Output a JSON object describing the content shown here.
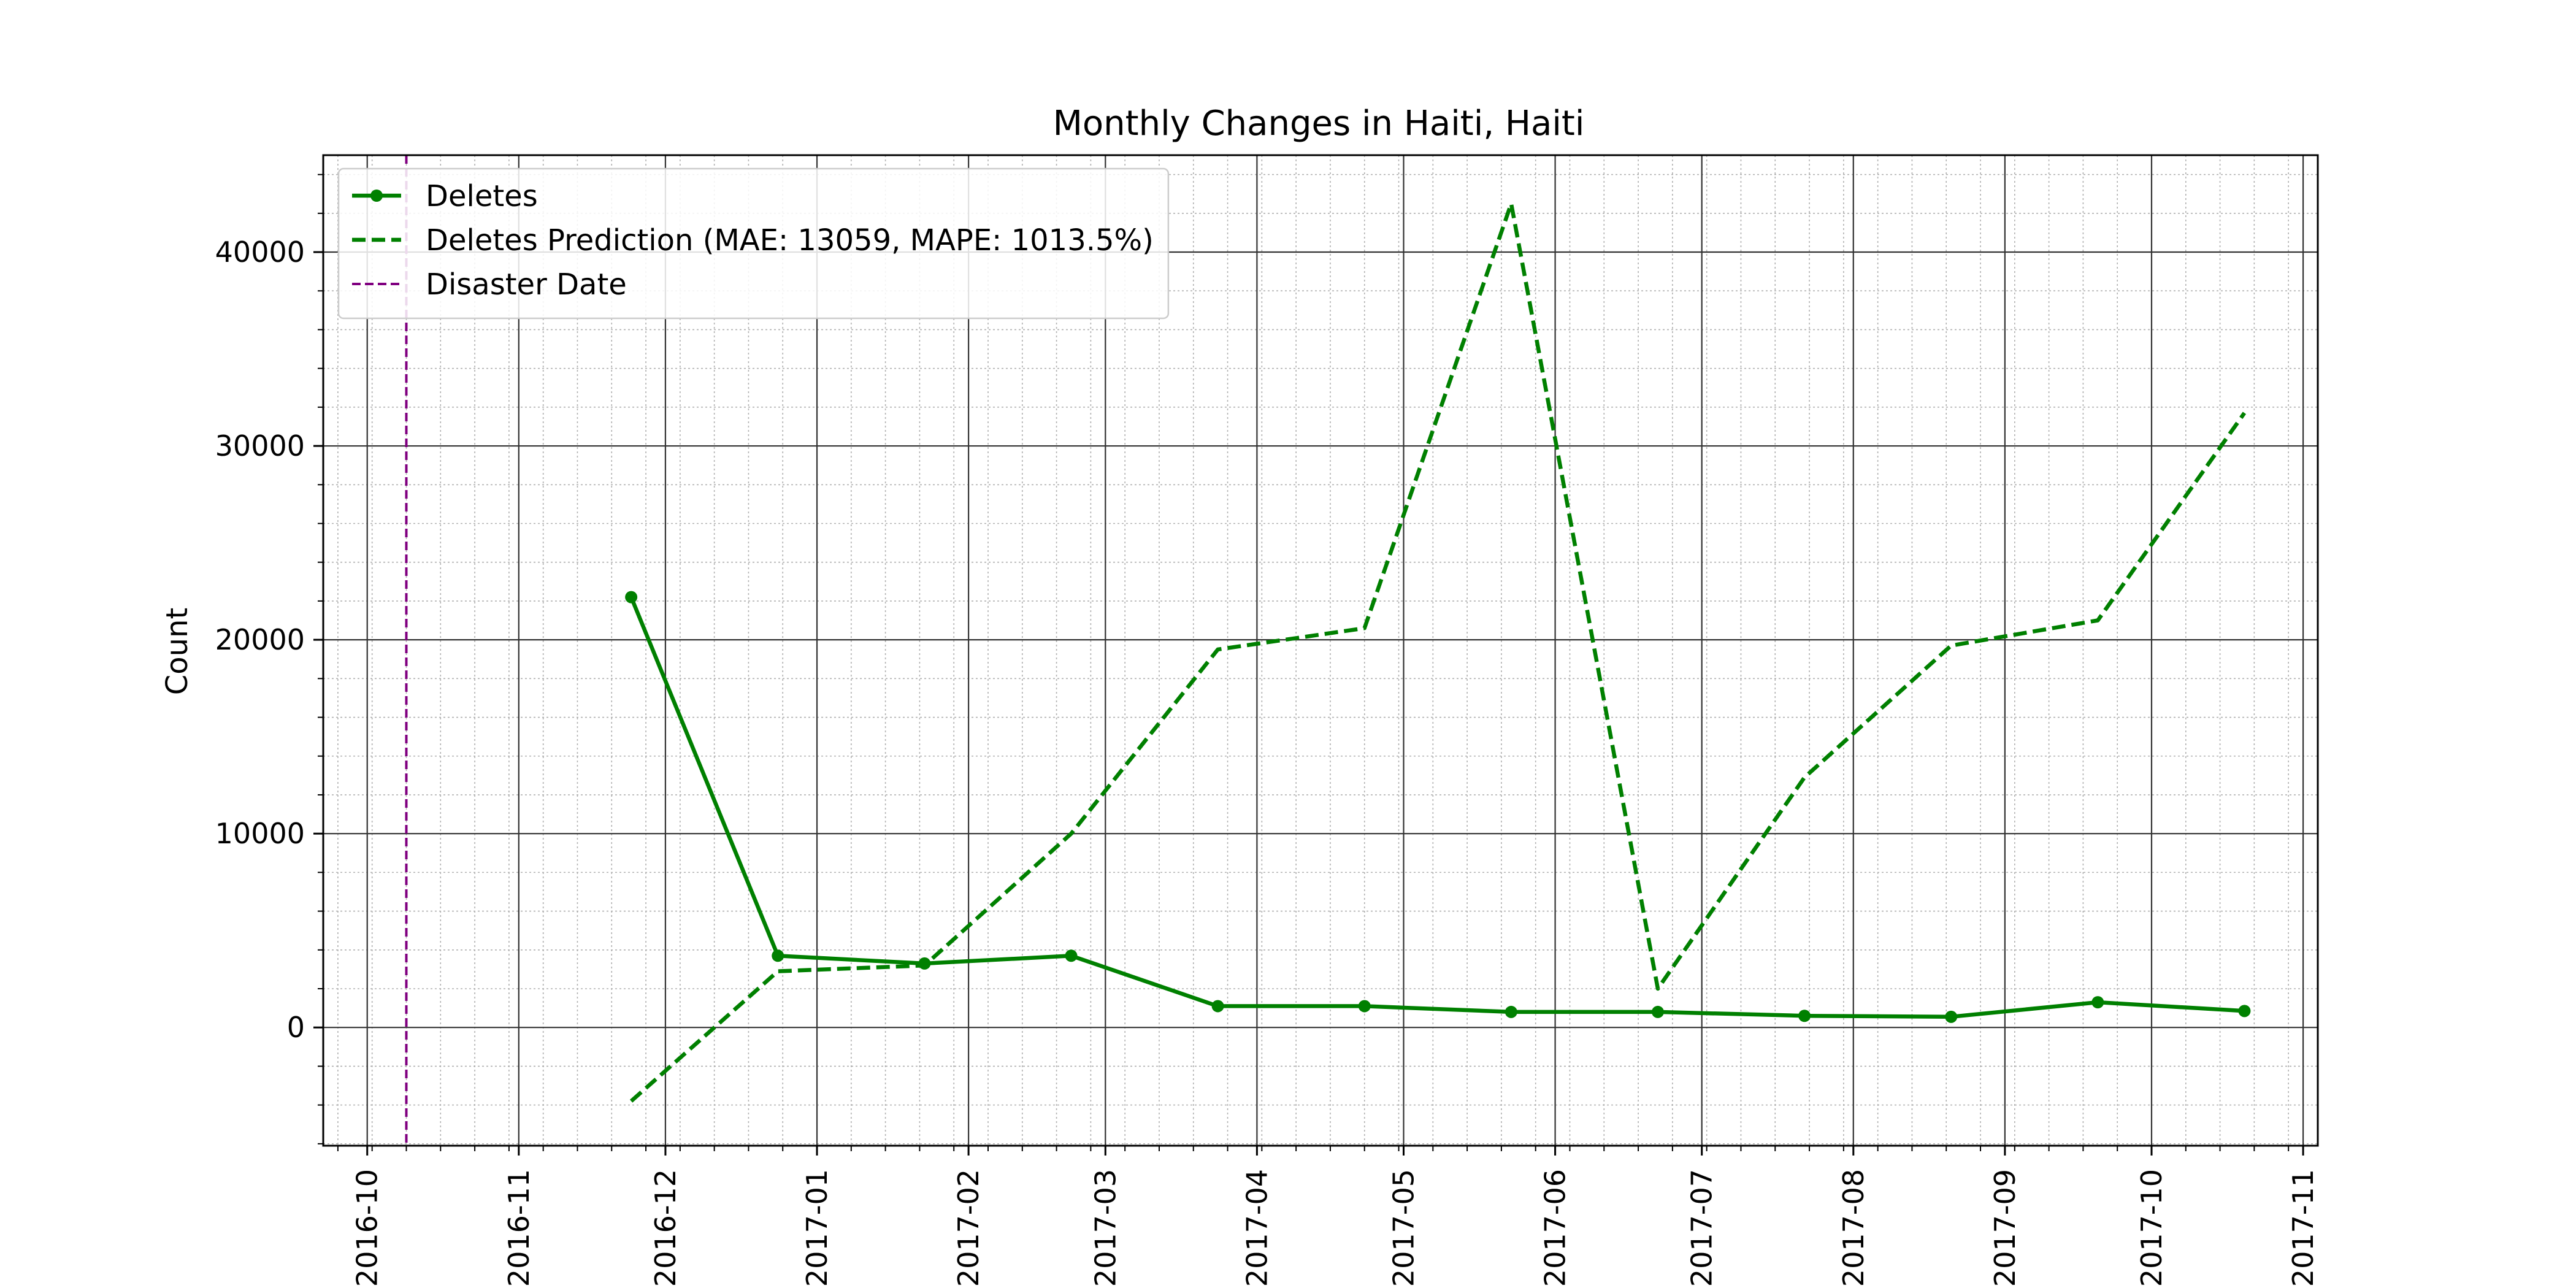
{
  "chart_data": {
    "type": "line",
    "title": "Monthly Changes in Haiti, Haiti",
    "xlabel": "",
    "ylabel": "Count",
    "xlim": [
      "2016-09-22",
      "2017-11-04"
    ],
    "ylim": [
      -6100,
      45000
    ],
    "grid": true,
    "legend_position": "top-left",
    "x_ticks": [
      "2016-10",
      "2016-11",
      "2016-12",
      "2017-01",
      "2017-02",
      "2017-03",
      "2017-04",
      "2017-05",
      "2017-06",
      "2017-07",
      "2017-08",
      "2017-09",
      "2017-10",
      "2017-11"
    ],
    "x_tick_dates": [
      "2016-10-01",
      "2016-11-01",
      "2016-12-01",
      "2017-01-01",
      "2017-02-01",
      "2017-03-01",
      "2017-04-01",
      "2017-05-01",
      "2017-06-01",
      "2017-07-01",
      "2017-08-01",
      "2017-09-01",
      "2017-10-01",
      "2017-11-01"
    ],
    "y_ticks": [
      0,
      10000,
      20000,
      30000,
      40000
    ],
    "y_tick_labels": [
      "0",
      "10000",
      "20000",
      "30000",
      "40000"
    ],
    "series": [
      {
        "name": "Deletes",
        "color": "#008000",
        "style": "solid",
        "marker": "circle",
        "x": [
          "2016-11-24",
          "2016-12-24",
          "2017-01-23",
          "2017-02-22",
          "2017-03-24",
          "2017-04-23",
          "2017-05-23",
          "2017-06-22",
          "2017-07-22",
          "2017-08-21",
          "2017-09-20",
          "2017-10-20"
        ],
        "y": [
          22200,
          3700,
          3300,
          3700,
          1100,
          1100,
          800,
          800,
          600,
          550,
          1300,
          850
        ]
      },
      {
        "name": "Deletes Prediction (MAE: 13059, MAPE: 1013.5%)",
        "color": "#008000",
        "style": "dashed",
        "marker": "none",
        "x": [
          "2016-11-24",
          "2016-12-24",
          "2017-01-23",
          "2017-02-22",
          "2017-03-24",
          "2017-04-23",
          "2017-05-23",
          "2017-06-22",
          "2017-07-22",
          "2017-08-21",
          "2017-09-20",
          "2017-10-20"
        ],
        "y": [
          -3800,
          2900,
          3200,
          10000,
          19500,
          20600,
          42500,
          2000,
          12900,
          19700,
          21000,
          31700
        ]
      }
    ],
    "vlines": [
      {
        "name": "Disaster Date",
        "date": "2016-10-09",
        "color": "#800080",
        "style": "dashed"
      }
    ]
  }
}
